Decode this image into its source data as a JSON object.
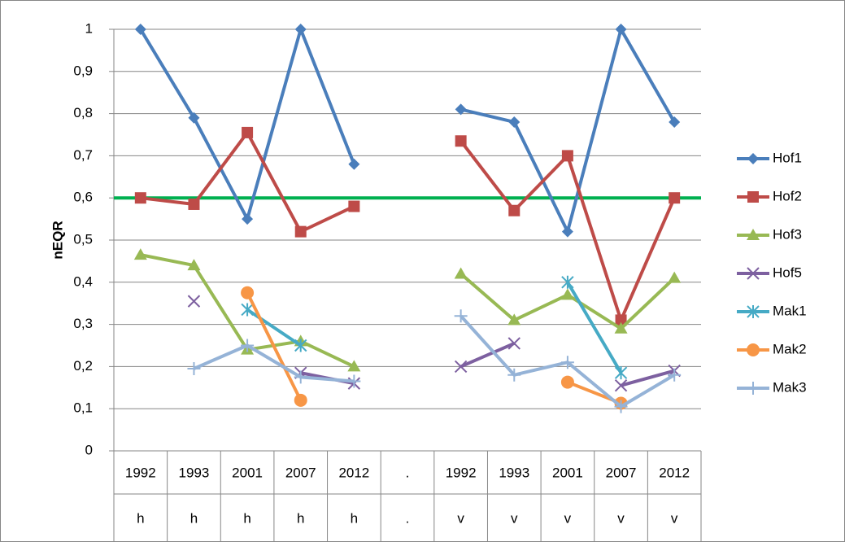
{
  "chart_data": {
    "type": "line",
    "y_label": "nEQR",
    "categories": [
      "1992",
      "1993",
      "2001",
      "2007",
      "2012",
      ".",
      "1992",
      "1993",
      "2001",
      "2007",
      "2012"
    ],
    "category_groups": [
      "h",
      "h",
      "h",
      "h",
      "h",
      ".",
      "v",
      "v",
      "v",
      "v",
      "v"
    ],
    "ylim": [
      0,
      1
    ],
    "yticks": [
      0,
      {
        "value": 0.1,
        "label": "0,1"
      },
      {
        "value": 0.2,
        "label": "0,2"
      },
      {
        "value": 0.3,
        "label": "0,3"
      },
      {
        "value": 0.4,
        "label": "0,4"
      },
      {
        "value": 0.5,
        "label": "0,5"
      },
      {
        "value": 0.6,
        "label": "0,6"
      },
      {
        "value": 0.7,
        "label": "0,7"
      },
      {
        "value": 0.8,
        "label": "0,8"
      },
      {
        "value": 0.9,
        "label": "0,9"
      },
      1
    ],
    "grid": true,
    "legend": "right",
    "reference_line": {
      "value": 0.6,
      "color": "#00b050"
    },
    "series": [
      {
        "name": "Hof1",
        "color": "#4a7ebb",
        "marker": "diamond",
        "values": [
          1,
          0.79,
          0.55,
          1,
          0.68,
          null,
          0.81,
          0.78,
          0.52,
          1,
          0.78
        ]
      },
      {
        "name": "Hof2",
        "color": "#be4b48",
        "marker": "square",
        "values": [
          0.6,
          0.585,
          0.755,
          0.52,
          0.58,
          null,
          0.735,
          0.57,
          0.7,
          0.31,
          0.6
        ]
      },
      {
        "name": "Hof3",
        "color": "#98b954",
        "marker": "triangle",
        "values": [
          0.465,
          0.44,
          0.24,
          0.26,
          0.2,
          null,
          0.42,
          0.31,
          0.37,
          0.29,
          0.41
        ]
      },
      {
        "name": "Hof5",
        "color": "#7d60a0",
        "marker": "x",
        "values": [
          null,
          0.355,
          null,
          0.185,
          0.16,
          null,
          0.2,
          0.255,
          null,
          0.155,
          0.19
        ]
      },
      {
        "name": "Mak1",
        "color": "#46aac5",
        "marker": "star",
        "values": [
          null,
          null,
          0.335,
          0.25,
          null,
          null,
          null,
          null,
          0.4,
          0.185,
          null
        ]
      },
      {
        "name": "Mak2",
        "color": "#f79646",
        "marker": "circle",
        "values": [
          null,
          null,
          0.375,
          0.12,
          null,
          null,
          null,
          null,
          0.163,
          0.113,
          null
        ]
      },
      {
        "name": "Mak3",
        "color": "#95b3d7",
        "marker": "plus",
        "values": [
          null,
          0.195,
          0.25,
          0.175,
          0.165,
          null,
          0.32,
          0.18,
          0.21,
          0.105,
          0.18
        ]
      }
    ]
  }
}
